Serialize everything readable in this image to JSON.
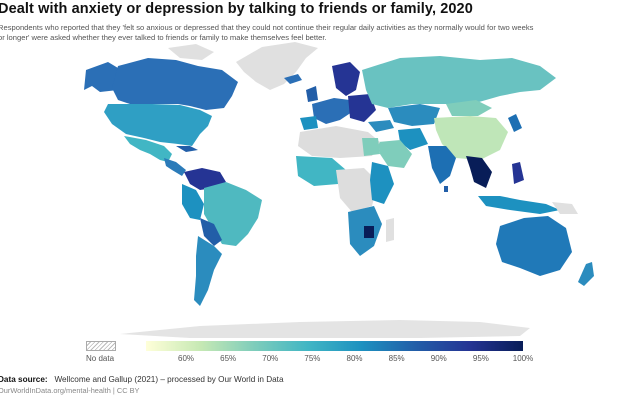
{
  "title": "Dealt with anxiety or depression by talking to friends or family, 2020",
  "subtitle_lines": [
    "Respondents who reported that they 'felt so anxious or depressed that they could not continue their regular daily activities as they normally would for two weeks",
    "or longer' were asked whether they ever talked to friends or family to make themselves feel better."
  ],
  "legend": {
    "no_data_label": "No data",
    "ticks": [
      "60%",
      "65%",
      "70%",
      "75%",
      "80%",
      "85%",
      "90%",
      "95%",
      "100%"
    ],
    "colors": [
      "#ffffd9",
      "#c7e9b4",
      "#7fcdbb",
      "#41b6c4",
      "#1d91c0",
      "#225ea8",
      "#253494",
      "#081d58"
    ],
    "no_data_color": "#e4e4e4"
  },
  "source_label": "Data source:",
  "source_text": "Wellcome and Gallup (2021) – processed by Our World in Data",
  "url": "OurWorldInData.org/mental-health | CC BY"
}
